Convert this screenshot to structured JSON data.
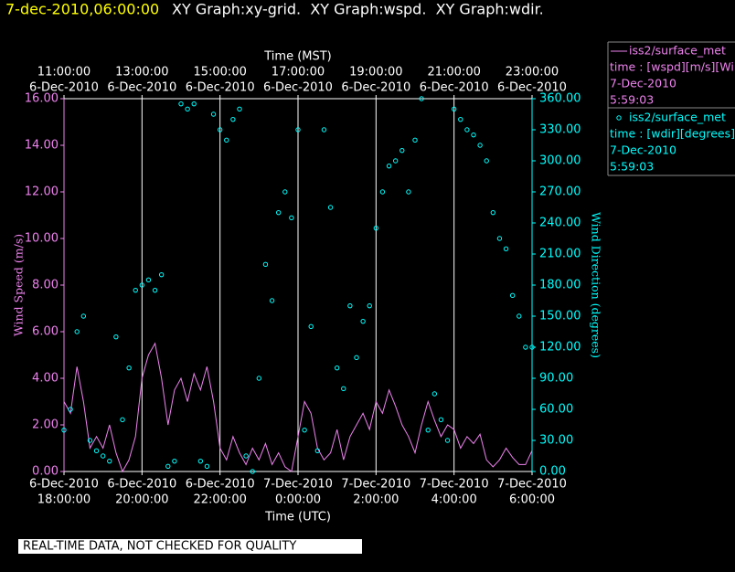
{
  "header": {
    "timestamp": "7-dec-2010,06:00:00",
    "graphs": "XY Graph:xy-grid.  XY Graph:wspd.  XY Graph:wdir."
  },
  "footer": "REAL-TIME DATA, NOT CHECKED FOR QUALITY",
  "chart_data": {
    "type": "line-scatter",
    "xlabel": "Time (UTC)",
    "x2label": "Time (MST)",
    "ylabel": "Wind Speed (m/s)",
    "y2label": "Wind Direction (degrees)",
    "grid": true,
    "xlim": [
      "2010-12-06T18:00Z",
      "2010-12-07T06:00Z"
    ],
    "xticks": [
      {
        "value": "2010-12-06T18:00Z",
        "label": [
          "6-Dec-2010",
          "18:00:00"
        ]
      },
      {
        "value": "2010-12-06T20:00Z",
        "label": [
          "6-Dec-2010",
          "20:00:00"
        ]
      },
      {
        "value": "2010-12-06T22:00Z",
        "label": [
          "6-Dec-2010",
          "22:00:00"
        ]
      },
      {
        "value": "2010-12-07T00:00Z",
        "label": [
          "7-Dec-2010",
          "0:00:00"
        ]
      },
      {
        "value": "2010-12-07T02:00Z",
        "label": [
          "7-Dec-2010",
          "2:00:00"
        ]
      },
      {
        "value": "2010-12-07T04:00Z",
        "label": [
          "7-Dec-2010",
          "4:00:00"
        ]
      },
      {
        "value": "2010-12-07T06:00Z",
        "label": [
          "7-Dec-2010",
          "6:00:00"
        ]
      }
    ],
    "x2ticks": [
      {
        "value": "2010-12-06T11:00-07:00",
        "label": [
          "11:00:00",
          "6-Dec-2010"
        ]
      },
      {
        "value": "2010-12-06T13:00-07:00",
        "label": [
          "13:00:00",
          "6-Dec-2010"
        ]
      },
      {
        "value": "2010-12-06T15:00-07:00",
        "label": [
          "15:00:00",
          "6-Dec-2010"
        ]
      },
      {
        "value": "2010-12-06T17:00-07:00",
        "label": [
          "17:00:00",
          "6-Dec-2010"
        ]
      },
      {
        "value": "2010-12-06T19:00-07:00",
        "label": [
          "19:00:00",
          "6-Dec-2010"
        ]
      },
      {
        "value": "2010-12-06T21:00-07:00",
        "label": [
          "21:00:00",
          "6-Dec-2010"
        ]
      },
      {
        "value": "2010-12-06T23:00-07:00",
        "label": [
          "23:00:00",
          "6-Dec-2010"
        ]
      }
    ],
    "ylim": [
      0,
      16
    ],
    "yticks": [
      {
        "value": 0,
        "label": "0.00"
      },
      {
        "value": 2,
        "label": "2.00"
      },
      {
        "value": 4,
        "label": "4.00"
      },
      {
        "value": 6,
        "label": "6.00"
      },
      {
        "value": 8,
        "label": "8.00"
      },
      {
        "value": 10,
        "label": "10.00"
      },
      {
        "value": 12,
        "label": "12.00"
      },
      {
        "value": 14,
        "label": "14.00"
      },
      {
        "value": 16,
        "label": "16.00"
      }
    ],
    "y2lim": [
      0,
      360
    ],
    "y2ticks": [
      {
        "value": 0,
        "label": "0.00"
      },
      {
        "value": 30,
        "label": "30.00"
      },
      {
        "value": 60,
        "label": "60.00"
      },
      {
        "value": 90,
        "label": "90.00"
      },
      {
        "value": 120,
        "label": "120.00"
      },
      {
        "value": 150,
        "label": "150.00"
      },
      {
        "value": 180,
        "label": "180.00"
      },
      {
        "value": 210,
        "label": "210.00"
      },
      {
        "value": 240,
        "label": "240.00"
      },
      {
        "value": 270,
        "label": "270.00"
      },
      {
        "value": 300,
        "label": "300.00"
      },
      {
        "value": 330,
        "label": "330.00"
      },
      {
        "value": 360,
        "label": "360.00"
      }
    ],
    "x": [
      "2010-12-06T18:00Z",
      "2010-12-06T18:10Z",
      "2010-12-06T18:20Z",
      "2010-12-06T18:30Z",
      "2010-12-06T18:40Z",
      "2010-12-06T18:50Z",
      "2010-12-06T19:00Z",
      "2010-12-06T19:10Z",
      "2010-12-06T19:20Z",
      "2010-12-06T19:30Z",
      "2010-12-06T19:40Z",
      "2010-12-06T19:50Z",
      "2010-12-06T20:00Z",
      "2010-12-06T20:10Z",
      "2010-12-06T20:20Z",
      "2010-12-06T20:30Z",
      "2010-12-06T20:40Z",
      "2010-12-06T20:50Z",
      "2010-12-06T21:00Z",
      "2010-12-06T21:10Z",
      "2010-12-06T21:20Z",
      "2010-12-06T21:30Z",
      "2010-12-06T21:40Z",
      "2010-12-06T21:50Z",
      "2010-12-06T22:00Z",
      "2010-12-06T22:10Z",
      "2010-12-06T22:20Z",
      "2010-12-06T22:30Z",
      "2010-12-06T22:40Z",
      "2010-12-06T22:50Z",
      "2010-12-06T23:00Z",
      "2010-12-06T23:10Z",
      "2010-12-06T23:20Z",
      "2010-12-06T23:30Z",
      "2010-12-06T23:40Z",
      "2010-12-06T23:50Z",
      "2010-12-07T00:00Z",
      "2010-12-07T00:10Z",
      "2010-12-07T00:20Z",
      "2010-12-07T00:30Z",
      "2010-12-07T00:40Z",
      "2010-12-07T00:50Z",
      "2010-12-07T01:00Z",
      "2010-12-07T01:10Z",
      "2010-12-07T01:20Z",
      "2010-12-07T01:30Z",
      "2010-12-07T01:40Z",
      "2010-12-07T01:50Z",
      "2010-12-07T02:00Z",
      "2010-12-07T02:10Z",
      "2010-12-07T02:20Z",
      "2010-12-07T02:30Z",
      "2010-12-07T02:40Z",
      "2010-12-07T02:50Z",
      "2010-12-07T03:00Z",
      "2010-12-07T03:10Z",
      "2010-12-07T03:20Z",
      "2010-12-07T03:30Z",
      "2010-12-07T03:40Z",
      "2010-12-07T03:50Z",
      "2010-12-07T04:00Z",
      "2010-12-07T04:10Z",
      "2010-12-07T04:20Z",
      "2010-12-07T04:30Z",
      "2010-12-07T04:40Z",
      "2010-12-07T04:50Z",
      "2010-12-07T05:00Z",
      "2010-12-07T05:10Z",
      "2010-12-07T05:20Z",
      "2010-12-07T05:30Z",
      "2010-12-07T05:40Z",
      "2010-12-07T05:50Z",
      "2010-12-07T06:00Z"
    ],
    "series": [
      {
        "name": "iss2/surface_met",
        "description": [
          "time : [wspd][m/s][Wind",
          "7-Dec-2010",
          "5:59:03"
        ],
        "color": "#ee82ee",
        "kind": "line",
        "axis": "y",
        "values": [
          3,
          2.5,
          4.5,
          3,
          1,
          1.5,
          1,
          2,
          0.8,
          0,
          0.5,
          1.5,
          4,
          5,
          5.5,
          4,
          2,
          3.5,
          4,
          3,
          4.2,
          3.5,
          4.5,
          3,
          1,
          0.5,
          1.5,
          0.8,
          0.3,
          1,
          0.5,
          1.2,
          0.3,
          0.8,
          0.2,
          0,
          1.5,
          3,
          2.5,
          1,
          0.5,
          0.8,
          1.8,
          0.5,
          1.5,
          2,
          2.5,
          1.8,
          3,
          2.5,
          3.5,
          2.8,
          2,
          1.5,
          0.8,
          2,
          3,
          2.2,
          1.5,
          2,
          1.8,
          1,
          1.5,
          1.2,
          1.6,
          0.5,
          0.2,
          0.5,
          1,
          0.6,
          0.3,
          0.3,
          0.9
        ]
      },
      {
        "name": "iss2/surface_met",
        "description": [
          "time : [wdir][degrees][V",
          "7-Dec-2010",
          "5:59:03"
        ],
        "color": "#00ffff",
        "kind": "scatter",
        "axis": "y2",
        "values": [
          40,
          60,
          135,
          150,
          30,
          20,
          15,
          10,
          130,
          50,
          100,
          175,
          180,
          185,
          175,
          190,
          5,
          10,
          355,
          350,
          355,
          10,
          5,
          345,
          330,
          320,
          340,
          350,
          15,
          0,
          90,
          200,
          165,
          250,
          270,
          245,
          330,
          40,
          140,
          20,
          330,
          255,
          100,
          80,
          160,
          110,
          145,
          160,
          235,
          270,
          295,
          300,
          310,
          270,
          320,
          360,
          40,
          75,
          50,
          30,
          350,
          340,
          330,
          325,
          315,
          300,
          250,
          225,
          215,
          170,
          150,
          120,
          120
        ]
      }
    ]
  }
}
